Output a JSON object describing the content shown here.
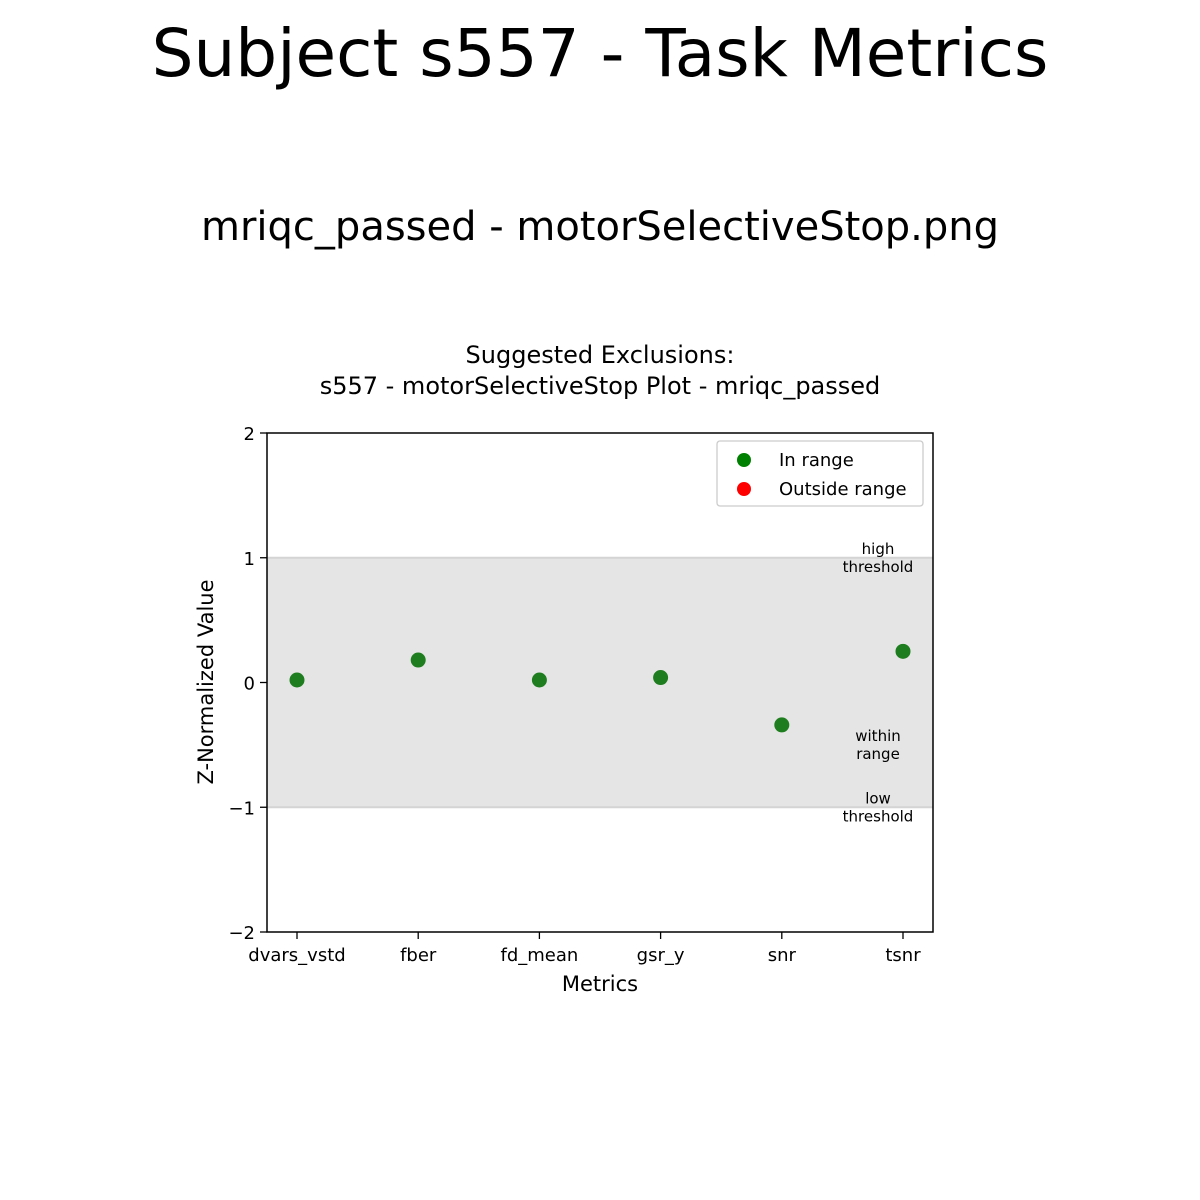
{
  "page": {
    "title": "Subject s557 - Task Metrics",
    "subtitle": "mriqc_passed - motorSelectiveStop.png"
  },
  "chart_data": {
    "type": "scatter",
    "title_lines": [
      "Suggested Exclusions:",
      "s557 - motorSelectiveStop Plot - mriqc_passed"
    ],
    "xlabel": "Metrics",
    "ylabel": "Z-Normalized Value",
    "ylim": [
      -2,
      2
    ],
    "yticks": [
      {
        "value": 2,
        "label": "2"
      },
      {
        "value": 1,
        "label": "1"
      },
      {
        "value": 0,
        "label": "0"
      },
      {
        "value": -1,
        "label": "−1"
      },
      {
        "value": -2,
        "label": "−2"
      }
    ],
    "categories": [
      "dvars_vstd",
      "fber",
      "fd_mean",
      "gsr_y",
      "snr",
      "tsnr"
    ],
    "values": [
      0.02,
      0.18,
      0.02,
      0.04,
      -0.34,
      0.25
    ],
    "range": {
      "low": -1,
      "high": 1,
      "color": "#e5e5e5"
    },
    "annotations": [
      {
        "lines": [
          "high",
          "threshold"
        ],
        "y": 1.0
      },
      {
        "lines": [
          "within",
          "range"
        ],
        "y": -0.5
      },
      {
        "lines": [
          "low",
          "threshold"
        ],
        "y": -1.0
      }
    ],
    "legend": {
      "position": "upper-right",
      "items": [
        {
          "label": "In range",
          "color": "#008000"
        },
        {
          "label": "Outside range",
          "color": "#ff0000"
        }
      ]
    },
    "point_color": "#1e7d1e",
    "grid": false
  }
}
